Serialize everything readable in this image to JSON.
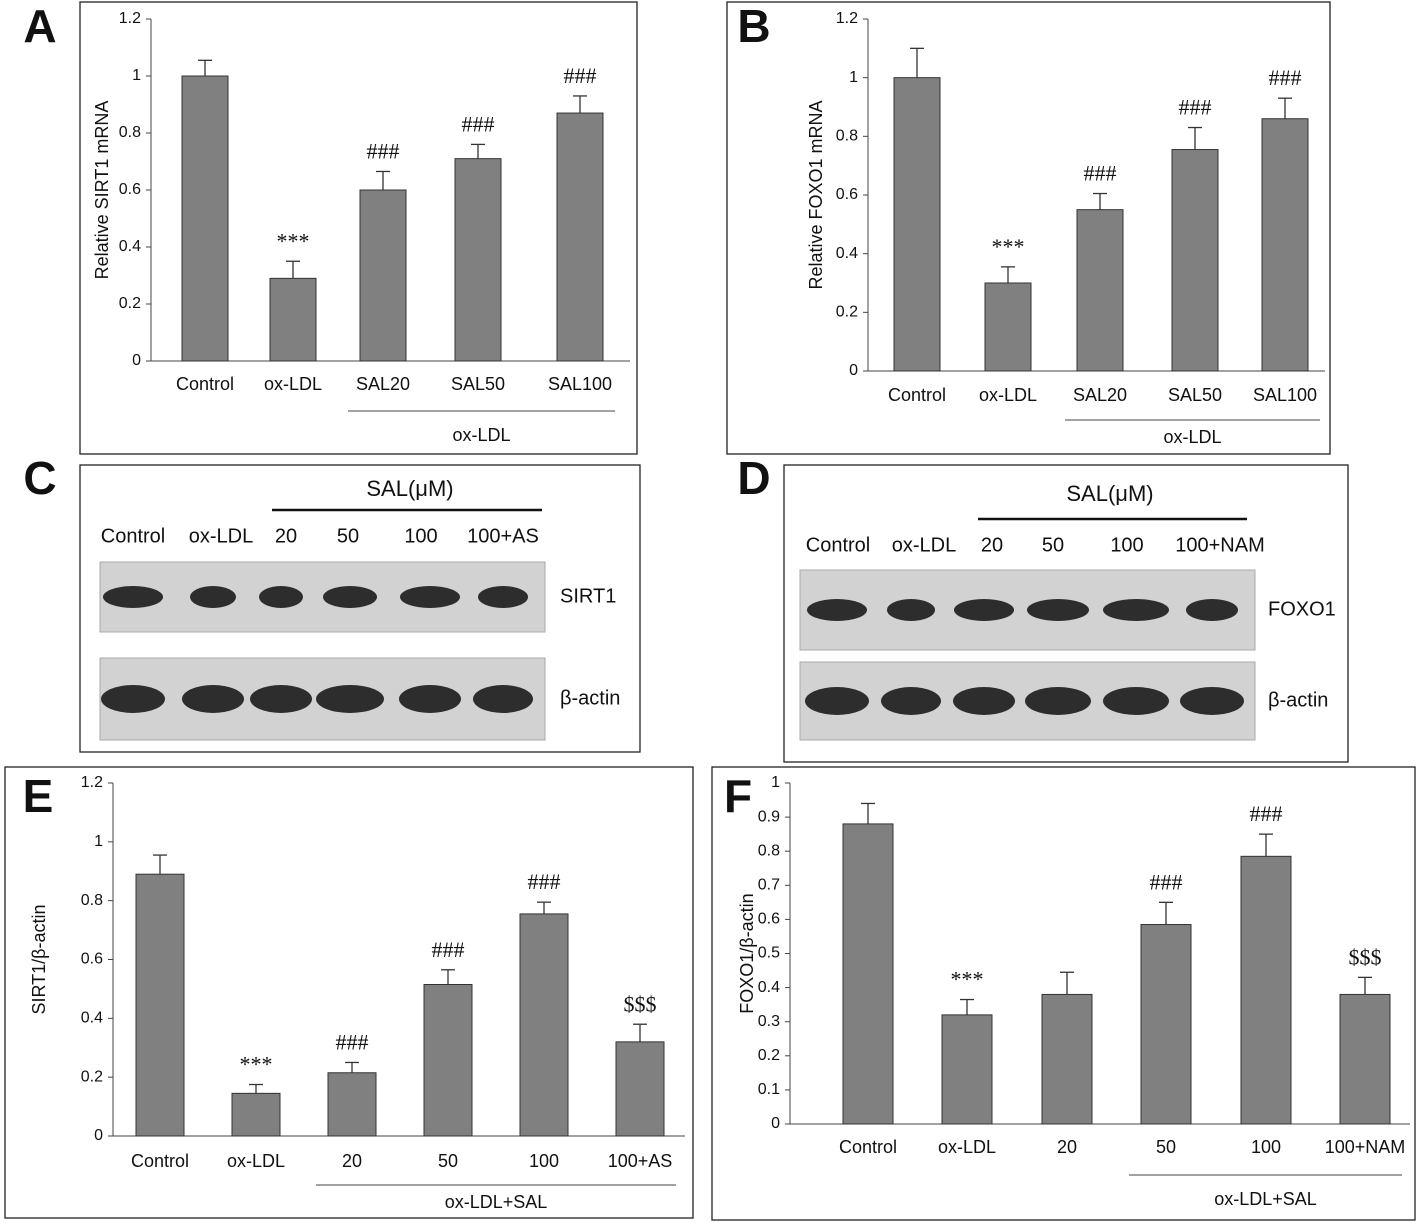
{
  "chart_data": [
    {
      "type": "bar",
      "panel": "A",
      "y_label": "Relative SIRT1 mRNA",
      "categories": [
        "Control",
        "ox-LDL",
        "SAL20",
        "SAL50",
        "SAL100"
      ],
      "values": [
        1.0,
        0.29,
        0.6,
        0.71,
        0.87
      ],
      "errors": [
        0.055,
        0.06,
        0.065,
        0.05,
        0.06
      ],
      "annotations": [
        null,
        "***",
        "###",
        "###",
        "###"
      ],
      "group_label": "ox-LDL",
      "color": "#808080",
      "ylim": [
        0,
        1.2
      ],
      "yticks": [
        0,
        0.2,
        0.4,
        0.6,
        0.8,
        1,
        1.2
      ]
    },
    {
      "type": "bar",
      "panel": "B",
      "y_label": "Relative FOXO1 mRNA",
      "categories": [
        "Control",
        "ox-LDL",
        "SAL20",
        "SAL50",
        "SAL100"
      ],
      "values": [
        1.0,
        0.3,
        0.55,
        0.755,
        0.86
      ],
      "errors": [
        0.1,
        0.055,
        0.055,
        0.075,
        0.07
      ],
      "annotations": [
        null,
        "***",
        "###",
        "###",
        "###"
      ],
      "group_label": "ox-LDL",
      "color": "#808080",
      "ylim": [
        0,
        1.2
      ],
      "yticks": [
        0,
        0.2,
        0.4,
        0.6,
        0.8,
        1,
        1.2
      ]
    },
    {
      "type": "bar",
      "panel": "E",
      "y_label": "SIRT1/β-actin",
      "categories": [
        "Control",
        "ox-LDL",
        "20",
        "50",
        "100",
        "100+AS"
      ],
      "values": [
        0.89,
        0.145,
        0.215,
        0.515,
        0.755,
        0.32
      ],
      "errors": [
        0.065,
        0.03,
        0.035,
        0.05,
        0.04,
        0.06
      ],
      "annotations": [
        null,
        "***",
        "###",
        "###",
        "###",
        "$$$"
      ],
      "group_label": "ox-LDL+SAL",
      "color": "#808080",
      "ylim": [
        0,
        1.2
      ],
      "yticks": [
        0,
        0.2,
        0.4,
        0.6,
        0.8,
        1,
        1.2
      ]
    },
    {
      "type": "bar",
      "panel": "F",
      "y_label": "FOXO1/β-actin",
      "categories": [
        "Control",
        "ox-LDL",
        "20",
        "50",
        "100",
        "100+NAM"
      ],
      "values": [
        0.88,
        0.32,
        0.38,
        0.585,
        0.785,
        0.38
      ],
      "errors": [
        0.06,
        0.045,
        0.065,
        0.065,
        0.065,
        0.05
      ],
      "annotations": [
        null,
        "***",
        null,
        "###",
        "###",
        "$$$"
      ],
      "group_label": "ox-LDL+SAL",
      "color": "#808080",
      "ylim": [
        0,
        1
      ],
      "yticks": [
        0,
        0.1,
        0.2,
        0.3,
        0.4,
        0.5,
        0.6,
        0.7,
        0.8,
        0.9,
        1
      ]
    }
  ],
  "blots": [
    {
      "panel": "C",
      "header": "SAL(μM)",
      "lanes": [
        "Control",
        "ox-LDL",
        "20",
        "50",
        "100",
        "100+AS"
      ],
      "rows": [
        "SIRT1",
        "β-actin"
      ]
    },
    {
      "panel": "D",
      "header": "SAL(μM)",
      "lanes": [
        "Control",
        "ox-LDL",
        "20",
        "50",
        "100",
        "100+NAM"
      ],
      "rows": [
        "FOXO1",
        "β-actin"
      ]
    }
  ]
}
